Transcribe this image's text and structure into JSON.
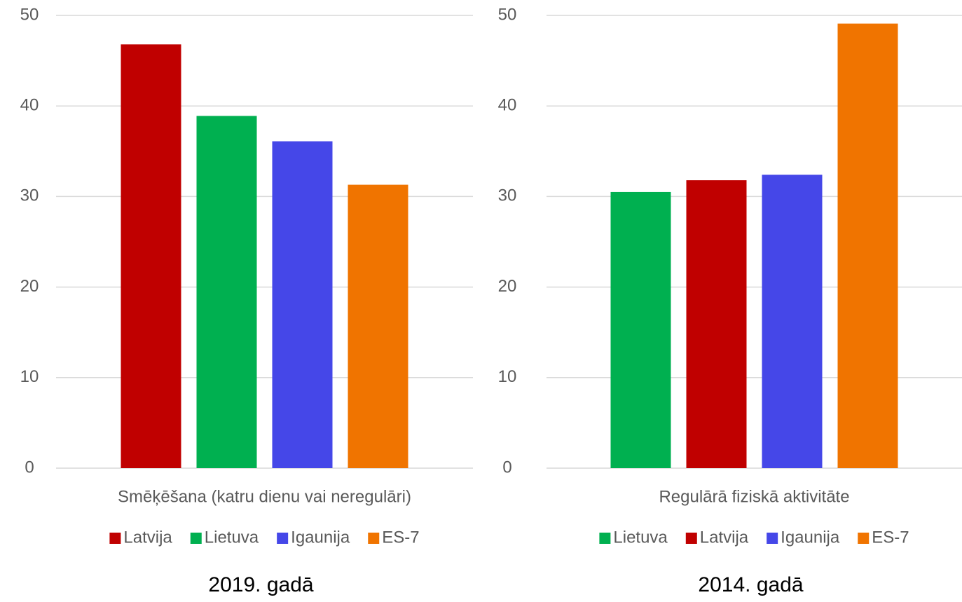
{
  "chart_data": [
    {
      "type": "bar",
      "title": "2019. gadā",
      "categories": [
        "Smēķēšana (katru dienu vai neregulāri)"
      ],
      "series": [
        {
          "name": "Latvija",
          "color": "#c00000",
          "values": [
            46.8
          ]
        },
        {
          "name": "Lietuva",
          "color": "#00b050",
          "values": [
            38.9
          ]
        },
        {
          "name": "Igaunija",
          "color": "#4547e8",
          "values": [
            36.1
          ]
        },
        {
          "name": "ES-7",
          "color": "#f07400",
          "values": [
            31.3
          ]
        }
      ],
      "ylim": [
        0,
        50
      ],
      "yticks": [
        0,
        10,
        20,
        30,
        40,
        50
      ],
      "grid": true,
      "legend": "bottom"
    },
    {
      "type": "bar",
      "title": "2014. gadā",
      "categories": [
        "Regulārā fiziskā aktivitāte"
      ],
      "series": [
        {
          "name": "Lietuva",
          "color": "#00b050",
          "values": [
            30.5
          ]
        },
        {
          "name": "Latvija",
          "color": "#c00000",
          "values": [
            31.8
          ]
        },
        {
          "name": "Igaunija",
          "color": "#4547e8",
          "values": [
            32.4
          ]
        },
        {
          "name": "ES-7",
          "color": "#f07400",
          "values": [
            49.1
          ]
        }
      ],
      "ylim": [
        0,
        50
      ],
      "yticks": [
        0,
        10,
        20,
        30,
        40,
        50
      ],
      "grid": true,
      "legend": "bottom"
    }
  ]
}
